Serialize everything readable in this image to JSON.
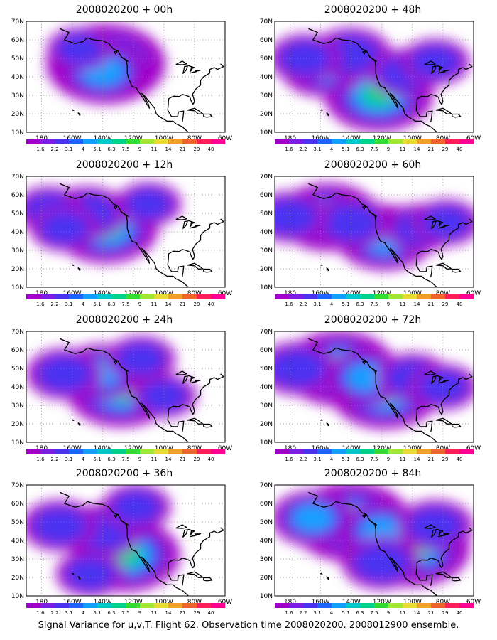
{
  "panels": [
    {
      "title": "2008020200 + 00h",
      "blobs": [
        {
          "lon": -138,
          "lat": 47,
          "level": 1.0
        },
        {
          "lon": -140,
          "lat": 43,
          "level": 0.6
        },
        {
          "lon": -155,
          "lat": 55,
          "level": 0.25
        }
      ]
    },
    {
      "title": "2008020200 + 12h",
      "blobs": [
        {
          "lon": -138,
          "lat": 42,
          "level": 0.8
        },
        {
          "lon": -150,
          "lat": 50,
          "level": 0.45
        },
        {
          "lon": -175,
          "lat": 52,
          "level": 0.3
        },
        {
          "lon": -165,
          "lat": 42,
          "level": 0.3
        },
        {
          "lon": -110,
          "lat": 55,
          "level": 0.25
        }
      ]
    },
    {
      "title": "2008020200 + 24h",
      "blobs": [
        {
          "lon": -128,
          "lat": 38,
          "level": 0.85
        },
        {
          "lon": -140,
          "lat": 48,
          "level": 0.5
        },
        {
          "lon": -165,
          "lat": 47,
          "level": 0.4
        },
        {
          "lon": -115,
          "lat": 55,
          "level": 0.3
        },
        {
          "lon": -100,
          "lat": 35,
          "level": 0.25
        }
      ]
    },
    {
      "title": "2008020200 + 36h",
      "blobs": [
        {
          "lon": -125,
          "lat": 32,
          "level": 0.85
        },
        {
          "lon": -140,
          "lat": 45,
          "level": 0.45
        },
        {
          "lon": -168,
          "lat": 48,
          "level": 0.4
        },
        {
          "lon": -148,
          "lat": 22,
          "level": 0.3
        },
        {
          "lon": -118,
          "lat": 58,
          "level": 0.3
        }
      ]
    },
    {
      "title": "2008020200 + 48h",
      "blobs": [
        {
          "lon": -122,
          "lat": 30,
          "level": 0.85
        },
        {
          "lon": -158,
          "lat": 45,
          "level": 0.55
        },
        {
          "lon": -140,
          "lat": 52,
          "level": 0.45
        },
        {
          "lon": -170,
          "lat": 50,
          "level": 0.35
        },
        {
          "lon": -105,
          "lat": 42,
          "level": 0.35
        },
        {
          "lon": -85,
          "lat": 48,
          "level": 0.3
        }
      ]
    },
    {
      "title": "2008020200 + 60h",
      "blobs": [
        {
          "lon": -155,
          "lat": 48,
          "level": 0.75
        },
        {
          "lon": -118,
          "lat": 37,
          "level": 0.7
        },
        {
          "lon": -140,
          "lat": 45,
          "level": 0.45
        },
        {
          "lon": -180,
          "lat": 48,
          "level": 0.4
        },
        {
          "lon": -95,
          "lat": 42,
          "level": 0.35
        },
        {
          "lon": -78,
          "lat": 45,
          "level": 0.3
        }
      ]
    },
    {
      "title": "2008020200 + 72h",
      "blobs": [
        {
          "lon": -148,
          "lat": 50,
          "level": 0.9
        },
        {
          "lon": -118,
          "lat": 37,
          "level": 0.85
        },
        {
          "lon": -130,
          "lat": 45,
          "level": 0.5
        },
        {
          "lon": -175,
          "lat": 50,
          "level": 0.45
        },
        {
          "lon": -100,
          "lat": 45,
          "level": 0.35
        },
        {
          "lon": -80,
          "lat": 40,
          "level": 0.3
        }
      ]
    },
    {
      "title": "2008020200 + 84h",
      "blobs": [
        {
          "lon": -140,
          "lat": 50,
          "level": 1.0
        },
        {
          "lon": -100,
          "lat": 36,
          "level": 0.95
        },
        {
          "lon": -120,
          "lat": 45,
          "level": 0.55
        },
        {
          "lon": -165,
          "lat": 52,
          "level": 0.5
        },
        {
          "lon": -85,
          "lat": 48,
          "level": 0.4
        },
        {
          "lon": -120,
          "lat": 28,
          "level": 0.45
        }
      ]
    }
  ],
  "axes": {
    "lat_labels": [
      "10N",
      "20N",
      "30N",
      "40N",
      "50N",
      "60N",
      "70N"
    ],
    "lat_values": [
      10,
      20,
      30,
      40,
      50,
      60,
      70
    ],
    "lon_labels": [
      "180",
      "160W",
      "140W",
      "120W",
      "100W",
      "80W",
      "60W"
    ],
    "lon_values": [
      -180,
      -160,
      -140,
      -120,
      -100,
      -80,
      -60
    ],
    "lon_range": [
      -190,
      -60
    ],
    "lat_range": [
      10,
      70
    ]
  },
  "colorbar": {
    "labels": [
      "1.6",
      "2.2",
      "3.1",
      "4",
      "5.1",
      "6.3",
      "7.5",
      "9",
      "11",
      "14",
      "21",
      "29",
      "40"
    ],
    "colors": [
      "#a000c8",
      "#7a1ee6",
      "#4b32f0",
      "#1e64ff",
      "#12a0ff",
      "#00c8c8",
      "#00d28c",
      "#32dc32",
      "#a0e632",
      "#e6dc32",
      "#f0a028",
      "#f0642d",
      "#ff1e5a",
      "#ff0090"
    ]
  },
  "caption": "Signal Variance for u,v,T. Flight 62. Observation time 2008020200. 2008012900 ensemble."
}
